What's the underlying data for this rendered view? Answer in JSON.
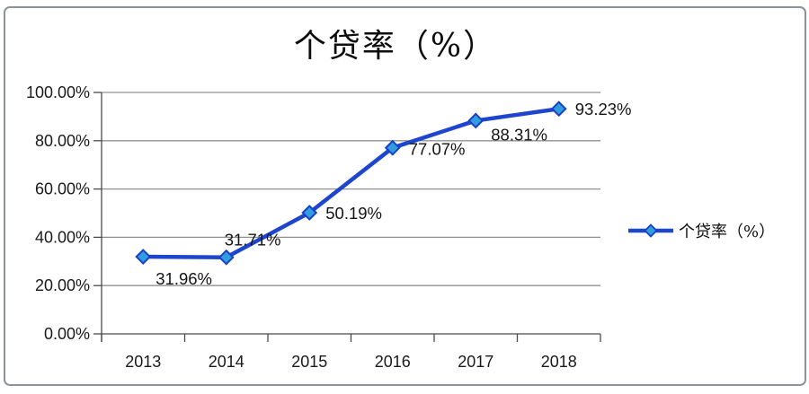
{
  "chart_data": {
    "type": "line",
    "title": "个贷率（%）",
    "categories": [
      "2013",
      "2014",
      "2015",
      "2016",
      "2017",
      "2018"
    ],
    "series": [
      {
        "name": "个贷率（%）",
        "values": [
          31.96,
          31.71,
          50.19,
          77.07,
          88.31,
          93.23
        ]
      }
    ],
    "data_labels": [
      "31.96%",
      "31.71%",
      "50.19%",
      "77.07%",
      "88.31%",
      "93.23%"
    ],
    "xlabel": "",
    "ylabel": "",
    "y_axis": {
      "min": 0,
      "max": 100,
      "step": 20,
      "tick_labels": [
        "0.00%",
        "20.00%",
        "40.00%",
        "60.00%",
        "80.00%",
        "100.00%"
      ]
    },
    "grid": true,
    "legend": {
      "position": "right",
      "entries": [
        "个贷率（%）"
      ]
    },
    "colors": {
      "line": "#1e45cd",
      "marker_fill": "#2f9ddf",
      "marker_stroke": "#1a40c4",
      "grid": "#909090",
      "axis": "#4a4a4a",
      "text": "#1a1a1a",
      "frame_border": "#8d9499",
      "background": "#ffffff"
    }
  }
}
